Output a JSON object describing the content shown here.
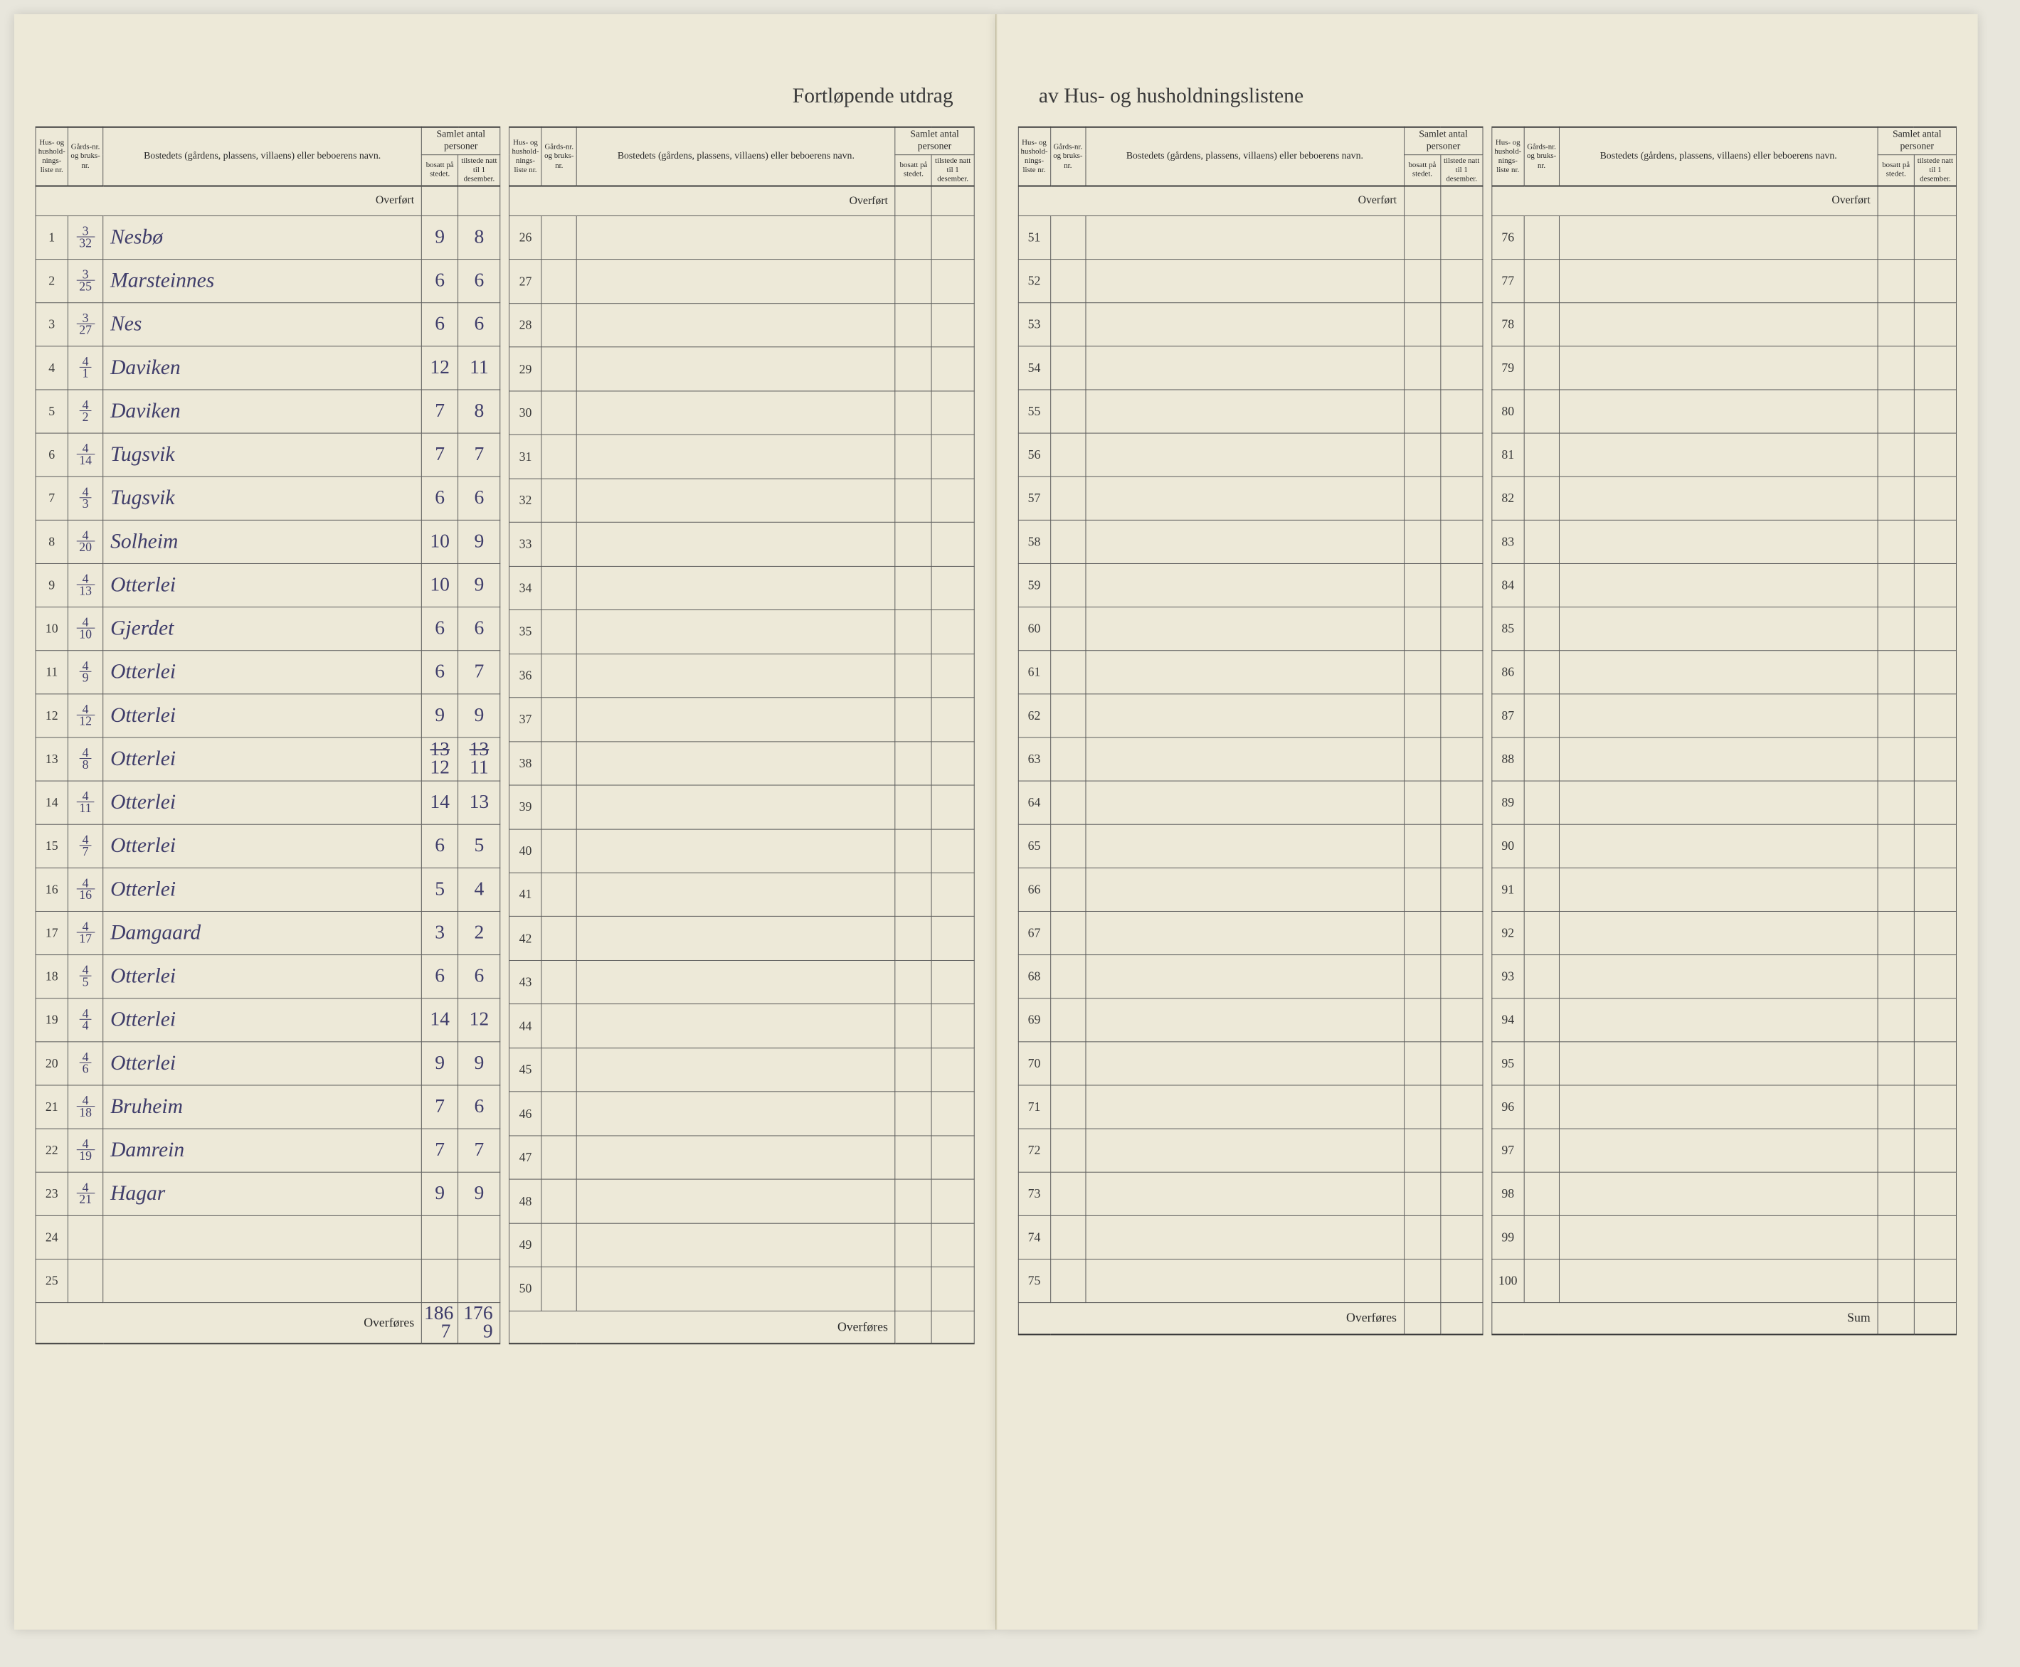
{
  "heading": {
    "left": "Fortløpende utdrag",
    "right": "av Hus- og husholdningslistene"
  },
  "headers": {
    "liste": "Hus- og hushold-nings-liste nr.",
    "gards": "Gårds-nr. og bruks-nr.",
    "bosted": "Bostedets (gårdens, plassens, villaens) eller beboerens navn.",
    "samlet": "Samlet antal personer",
    "bosatt": "bosatt på stedet.",
    "tilstede": "tilstede natt til 1 desember."
  },
  "labels": {
    "overfort": "Overført",
    "overfores": "Overføres",
    "sum": "Sum"
  },
  "panels": [
    {
      "start": 1,
      "rows": [
        {
          "g": "3",
          "b": "32",
          "name": "Nesbø",
          "bo": "9",
          "ti": "8"
        },
        {
          "g": "3",
          "b": "25",
          "name": "Marsteinnes",
          "bo": "6",
          "ti": "6"
        },
        {
          "g": "3",
          "b": "27",
          "name": "Nes",
          "bo": "6",
          "ti": "6"
        },
        {
          "g": "4",
          "b": "1",
          "name": "Daviken",
          "bo": "12",
          "ti": "11"
        },
        {
          "g": "4",
          "b": "2",
          "name": "Daviken",
          "bo": "7",
          "ti": "8"
        },
        {
          "g": "4",
          "b": "14",
          "name": "Tugsvik",
          "bo": "7",
          "ti": "7"
        },
        {
          "g": "4",
          "b": "3",
          "name": "Tugsvik",
          "bo": "6",
          "ti": "6"
        },
        {
          "g": "4",
          "b": "20",
          "name": "Solheim",
          "bo": "10",
          "ti": "9"
        },
        {
          "g": "4",
          "b": "13",
          "name": "Otterlei",
          "bo": "10",
          "ti": "9"
        },
        {
          "g": "4",
          "b": "10",
          "name": "Gjerdet",
          "bo": "6",
          "ti": "6"
        },
        {
          "g": "4",
          "b": "9",
          "name": "Otterlei",
          "bo": "6",
          "ti": "7"
        },
        {
          "g": "4",
          "b": "12",
          "name": "Otterlei",
          "bo": "9",
          "ti": "9"
        },
        {
          "g": "4",
          "b": "8",
          "name": "Otterlei",
          "bo": "13/12",
          "ti": "13/11",
          "strike": true
        },
        {
          "g": "4",
          "b": "11",
          "name": "Otterlei",
          "bo": "14",
          "ti": "13"
        },
        {
          "g": "4",
          "b": "7",
          "name": "Otterlei",
          "bo": "6",
          "ti": "5"
        },
        {
          "g": "4",
          "b": "16",
          "name": "Otterlei",
          "bo": "5",
          "ti": "4"
        },
        {
          "g": "4",
          "b": "17",
          "name": "Damgaard",
          "bo": "3",
          "ti": "2"
        },
        {
          "g": "4",
          "b": "5",
          "name": "Otterlei",
          "bo": "6",
          "ti": "6"
        },
        {
          "g": "4",
          "b": "4",
          "name": "Otterlei",
          "bo": "14",
          "ti": "12"
        },
        {
          "g": "4",
          "b": "6",
          "name": "Otterlei",
          "bo": "9",
          "ti": "9"
        },
        {
          "g": "4",
          "b": "18",
          "name": "Bruheim",
          "bo": "7",
          "ti": "6"
        },
        {
          "g": "4",
          "b": "19",
          "name": "Damrein",
          "bo": "7",
          "ti": "7"
        },
        {
          "g": "4",
          "b": "21",
          "name": "Hagar",
          "bo": "9",
          "ti": "9"
        },
        {},
        {}
      ],
      "footer": {
        "label": "Overføres",
        "bo": "186/7",
        "ti": "176/9"
      }
    },
    {
      "start": 26,
      "rows": [
        {},
        {},
        {},
        {},
        {},
        {},
        {},
        {},
        {},
        {},
        {},
        {},
        {},
        {},
        {},
        {},
        {},
        {},
        {},
        {},
        {},
        {},
        {},
        {},
        {}
      ],
      "footer": {
        "label": "Overføres"
      }
    },
    {
      "start": 51,
      "rows": [
        {},
        {},
        {},
        {},
        {},
        {},
        {},
        {},
        {},
        {},
        {},
        {},
        {},
        {},
        {},
        {},
        {},
        {},
        {},
        {},
        {},
        {},
        {},
        {},
        {}
      ],
      "footer": {
        "label": "Overføres"
      }
    },
    {
      "start": 76,
      "rows": [
        {},
        {},
        {},
        {},
        {},
        {},
        {},
        {},
        {},
        {},
        {},
        {},
        {},
        {},
        {},
        {},
        {},
        {},
        {},
        {},
        {},
        {},
        {},
        {},
        {}
      ],
      "footer": {
        "label": "Sum"
      }
    }
  ]
}
